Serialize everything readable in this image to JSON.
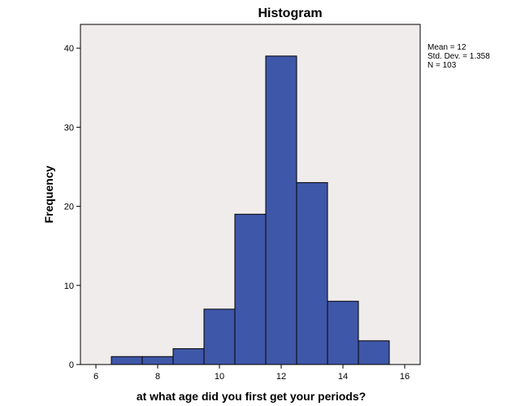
{
  "chart_data": {
    "type": "bar",
    "title": "Histogram",
    "xlabel": "at what age did you first get your periods?",
    "ylabel": "Frequency",
    "bins": [
      {
        "start": 6.5,
        "end": 7.5,
        "count": 1
      },
      {
        "start": 7.5,
        "end": 8.5,
        "count": 1
      },
      {
        "start": 8.5,
        "end": 9.5,
        "count": 2
      },
      {
        "start": 9.5,
        "end": 10.5,
        "count": 7
      },
      {
        "start": 10.5,
        "end": 11.5,
        "count": 19
      },
      {
        "start": 11.5,
        "end": 12.5,
        "count": 39
      },
      {
        "start": 12.5,
        "end": 13.5,
        "count": 23
      },
      {
        "start": 13.5,
        "end": 14.5,
        "count": 8
      },
      {
        "start": 14.5,
        "end": 15.5,
        "count": 3
      }
    ],
    "xlim": [
      5.5,
      16.5
    ],
    "ylim": [
      0,
      43
    ],
    "xticks": [
      "6",
      "8",
      "10",
      "12",
      "14",
      "16"
    ],
    "yticks": [
      "0",
      "10",
      "20",
      "30",
      "40"
    ],
    "grid": false,
    "stats": {
      "mean": "Mean = 12",
      "std_dev": "Std. Dev. = 1.358",
      "n": "N = 103"
    },
    "colors": {
      "bar_fill": "#3f57a8",
      "bar_stroke": "#000000",
      "plot_background": "#f0ecec"
    }
  }
}
